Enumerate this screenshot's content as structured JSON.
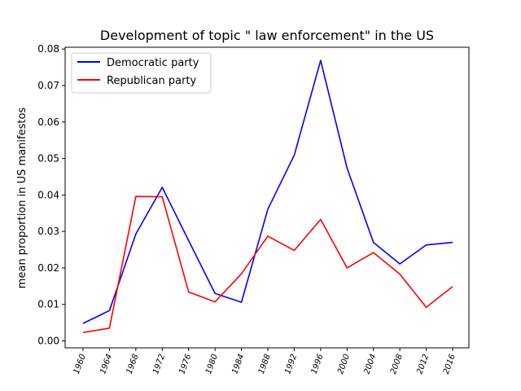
{
  "chart_data": {
    "type": "line",
    "title": "Development of topic \" law enforcement\" in the US",
    "xlabel": "",
    "ylabel": "mean proportion in US manifestos",
    "x": [
      "1960",
      "1964",
      "1968",
      "1972",
      "1976",
      "1980",
      "1984",
      "1988",
      "1992",
      "1996",
      "2000",
      "2004",
      "2008",
      "2012",
      "2016"
    ],
    "ylim": [
      -0.0019,
      0.0805
    ],
    "yticks": [
      "0.00",
      "0.01",
      "0.02",
      "0.03",
      "0.04",
      "0.05",
      "0.06",
      "0.07",
      "0.08"
    ],
    "grid": false,
    "legend_position": "top-left",
    "series": [
      {
        "name": "Democratic party",
        "color": "#0000ff",
        "values": [
          0.0048,
          0.0083,
          0.0293,
          0.0421,
          0.0275,
          0.013,
          0.0106,
          0.0361,
          0.0509,
          0.0769,
          0.0474,
          0.027,
          0.0211,
          0.0263,
          0.027
        ]
      },
      {
        "name": "Republican party",
        "color": "#ff0000",
        "values": [
          0.0023,
          0.0035,
          0.0396,
          0.0395,
          0.0134,
          0.0107,
          0.0184,
          0.0287,
          0.0248,
          0.0333,
          0.02,
          0.0242,
          0.0183,
          0.0092,
          0.0149
        ]
      }
    ]
  }
}
